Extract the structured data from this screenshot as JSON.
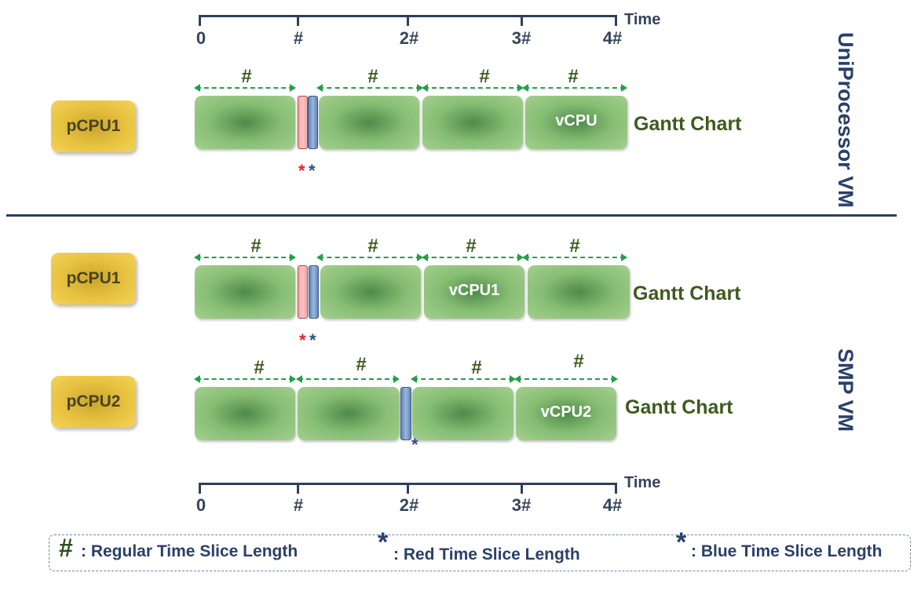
{
  "top_axis": {
    "title": "Time",
    "ticks": [
      "0",
      "#",
      "2#",
      "3#",
      "4#"
    ]
  },
  "bottom_axis": {
    "title": "Time",
    "ticks": [
      "0",
      "#",
      "2#",
      "3#",
      "4#"
    ]
  },
  "uniprocessor": {
    "section_label": "UniProcessor VM",
    "pcpu_label": "pCPU1",
    "vcpu_label": "vCPU",
    "gantt_label": "Gantt Chart",
    "slice_marks": [
      "#",
      "#",
      "#",
      "#"
    ],
    "star_red": "*",
    "star_blue": "*"
  },
  "smp": {
    "section_label": "SMP VM",
    "row1": {
      "pcpu_label": "pCPU1",
      "vcpu_label": "vCPU1",
      "gantt_label": "Gantt Chart",
      "slice_marks": [
        "#",
        "#",
        "#",
        "#"
      ],
      "star_red": "*",
      "star_blue": "*"
    },
    "row2": {
      "pcpu_label": "pCPU2",
      "vcpu_label": "vCPU2",
      "gantt_label": "Gantt Chart",
      "slice_marks": [
        "#",
        "#",
        "#",
        "#"
      ],
      "star_blue": "*"
    }
  },
  "legend": {
    "regular_symbol": "#",
    "regular_text": ": Regular Time Slice Length",
    "red_symbol": "*",
    "red_text": ": Red Time Slice Length",
    "blue_symbol": "*",
    "blue_text": ": Blue Time Slice Length"
  },
  "colors": {
    "axis": "#2f3f5a",
    "block_green": "#86bd73",
    "pcpu_gold": "#e8c240",
    "red_slice": "#f2a7a7",
    "blue_slice": "#7e9fcc",
    "arrow_green": "#22a04a",
    "divider": "#2f3f5a"
  }
}
